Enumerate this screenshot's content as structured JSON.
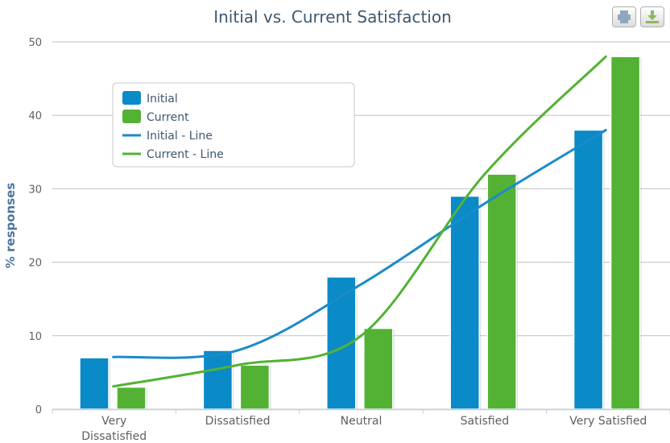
{
  "toolbar": {
    "print_icon": "printer-icon",
    "export_icon": "download-icon",
    "colors": {
      "print": "#90A6C0",
      "export": "#8DB860"
    }
  },
  "chart_data": {
    "type": "bar",
    "title": "Initial vs. Current Satisfaction",
    "xlabel": "",
    "ylabel": "% responses",
    "ylim": [
      0,
      50
    ],
    "yticks": [
      0,
      10,
      20,
      30,
      40,
      50
    ],
    "categories": [
      "Very Dissatisfied",
      "Dissatisfied",
      "Neutral",
      "Satisfied",
      "Very Satisfied"
    ],
    "category_lines": [
      [
        "Very",
        "Dissatisfied"
      ],
      [
        "Dissatisfied"
      ],
      [
        "Neutral"
      ],
      [
        "Satisfied"
      ],
      [
        "Very Satisfied"
      ]
    ],
    "grid": true,
    "legend_position": "top-left",
    "series": [
      {
        "name": "Initial",
        "kind": "bar",
        "color": "#0A8AC6",
        "values": [
          7,
          8,
          18,
          29,
          38
        ]
      },
      {
        "name": "Current",
        "kind": "bar",
        "color": "#53B234",
        "values": [
          3,
          6,
          11,
          32,
          48
        ]
      },
      {
        "name": "Initial - Line",
        "kind": "spline",
        "color": "#1B8BC9",
        "values": [
          7.1,
          8,
          17,
          28,
          38
        ]
      },
      {
        "name": "Current - Line",
        "kind": "spline",
        "color": "#53B234",
        "values": [
          3.1,
          6,
          10,
          32,
          48
        ]
      }
    ]
  }
}
